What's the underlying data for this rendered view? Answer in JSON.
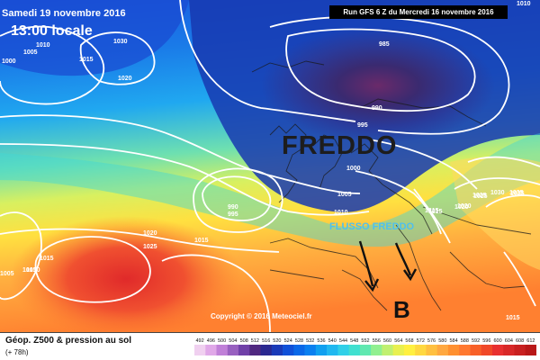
{
  "header": {
    "date": "Samedi 19 novembre 2016",
    "time": "13:00 locale",
    "run": "Run GFS 6 Z du Mercredi 16 novembre 2016"
  },
  "annotations": {
    "cold": "FREDDO",
    "flow": "FLUSSO FREDDO",
    "low": "B"
  },
  "isobar_labels": [
    "1010",
    "985",
    "990",
    "995",
    "1000",
    "1005",
    "1010",
    "1015",
    "1020",
    "1025",
    "1030",
    "1035",
    "1030",
    "1015",
    "1020",
    "1010",
    "1005",
    "1000",
    "990",
    "995",
    "1020",
    "1025",
    "1015",
    "1015",
    "1010",
    "1005",
    "1015",
    "1015",
    "1015",
    "1020",
    "1025",
    "1035"
  ],
  "copyright": "Copyright © 2016 Meteociel.fr",
  "footer": {
    "title": "Géop. Z500 & pression au sol",
    "subtitle": "(+ 78h)"
  },
  "scale": {
    "values": [
      "492",
      "496",
      "500",
      "504",
      "508",
      "512",
      "516",
      "520",
      "524",
      "528",
      "532",
      "536",
      "540",
      "544",
      "548",
      "552",
      "556",
      "560",
      "564",
      "568",
      "572",
      "576",
      "580",
      "584",
      "588",
      "592",
      "596",
      "600",
      "604",
      "608",
      "612"
    ],
    "colors": [
      "#f0d0f0",
      "#e0a8e8",
      "#c080d8",
      "#9860c0",
      "#7040a8",
      "#502880",
      "#2a2890",
      "#1a3ab8",
      "#1050d8",
      "#0a68e8",
      "#0a80f0",
      "#10a0f0",
      "#20b8f0",
      "#30d0e8",
      "#40e0d0",
      "#60e8b0",
      "#90f090",
      "#c0f070",
      "#e8f050",
      "#fff040",
      "#ffd840",
      "#ffc040",
      "#ffa840",
      "#ff9030",
      "#ff7830",
      "#f86028",
      "#f04828",
      "#e83030",
      "#d82828",
      "#c82020",
      "#b81818"
    ]
  }
}
